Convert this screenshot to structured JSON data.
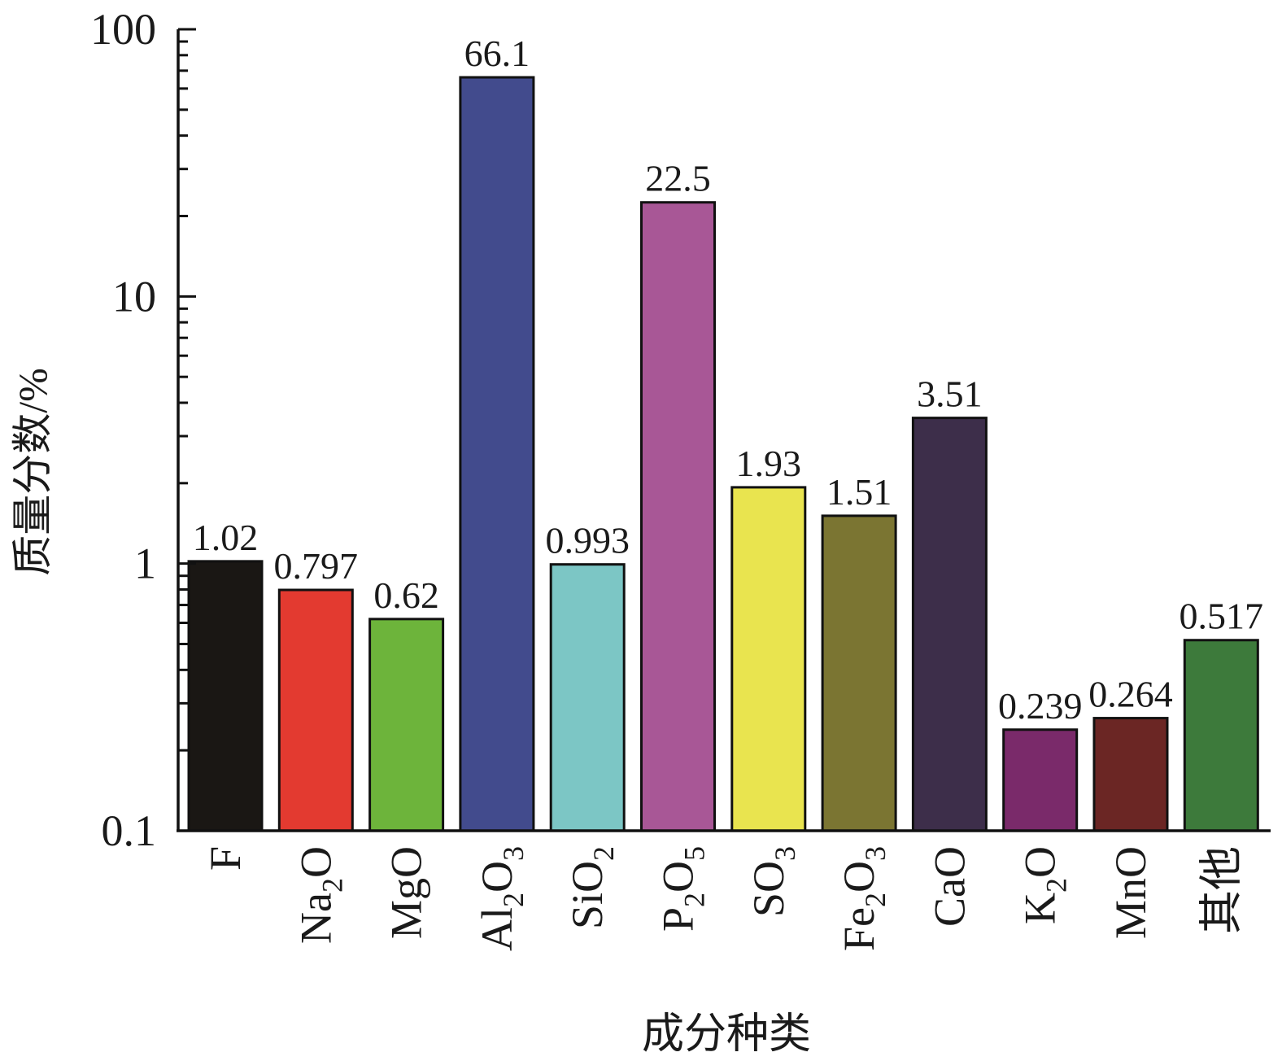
{
  "chart_data": {
    "type": "bar",
    "xlabel": "成分种类",
    "ylabel": "质量分数/%",
    "yscale": "log",
    "ylim": [
      0.1,
      100
    ],
    "yticks": [
      "0.1",
      "1",
      "10",
      "100"
    ],
    "grid": false,
    "legend": "none",
    "categories": [
      {
        "base": "F",
        "sub": ""
      },
      {
        "base": "Na",
        "sub": "2",
        "tail": "O"
      },
      {
        "base": "MgO",
        "sub": ""
      },
      {
        "base": "Al",
        "sub": "2",
        "tail": "O",
        "sub2": "3"
      },
      {
        "base": "SiO",
        "sub": "2"
      },
      {
        "base": "P",
        "sub": "2",
        "tail": "O",
        "sub2": "5"
      },
      {
        "base": "SO",
        "sub": "3"
      },
      {
        "base": "Fe",
        "sub": "2",
        "tail": "O",
        "sub2": "3"
      },
      {
        "base": "CaO",
        "sub": ""
      },
      {
        "base": "K",
        "sub": "2",
        "tail": "O"
      },
      {
        "base": "MnO",
        "sub": ""
      },
      {
        "base": "其他",
        "sub": ""
      }
    ],
    "values": [
      1.02,
      0.797,
      0.62,
      66.1,
      0.993,
      22.5,
      1.93,
      1.51,
      3.51,
      0.239,
      0.264,
      0.517
    ],
    "labels": [
      "1.02",
      "0.797",
      "0.62",
      "66.1",
      "0.993",
      "22.5",
      "1.93",
      "1.51",
      "3.51",
      "0.239",
      "0.264",
      "0.517"
    ],
    "colors": [
      "#1a1714",
      "#e33a30",
      "#6db43b",
      "#424b8d",
      "#7cc6c5",
      "#a85796",
      "#e9e44f",
      "#7b7532",
      "#3d2e4a",
      "#7a2a6a",
      "#6b2624",
      "#3d7a3b"
    ]
  }
}
